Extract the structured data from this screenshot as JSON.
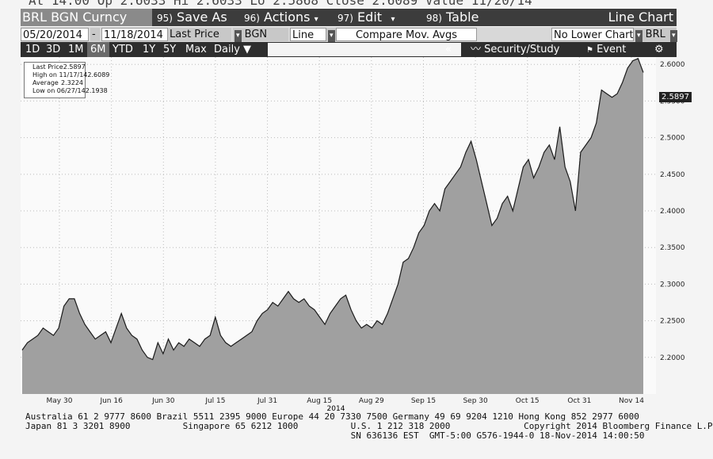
{
  "quote_line": "At 14:00   Op 2.6033    Hi 2.6033    Lo 2.5868   Close 2.6089    Value 11/20/14",
  "titlebar": {
    "ticker": "BRL BGN Curncy",
    "menus": [
      {
        "num": "95)",
        "label": "Save As"
      },
      {
        "num": "96)",
        "label": "Actions"
      },
      {
        "num": "97)",
        "label": "Edit"
      },
      {
        "num": "98)",
        "label": "Table"
      }
    ],
    "chart_type": "Line Chart"
  },
  "controls": {
    "start_date": "05/20/2014",
    "date_sep": "-",
    "end_date": "11/18/2014",
    "field": "Last Price",
    "source": "BGN",
    "style": "Line",
    "compare": "Compare Mov. Avgs",
    "lower_chart": "No Lower Chart",
    "currency": "BRL"
  },
  "rangebar": {
    "ranges": [
      "1D",
      "3D",
      "1M",
      "6M",
      "YTD",
      "1Y",
      "5Y",
      "Max"
    ],
    "active": "6M",
    "frequency": "Daily",
    "collapse": "«",
    "security": "Security/Study",
    "event": "Event",
    "settings_icon": "gear-icon"
  },
  "legend": [
    {
      "label": "Last Price",
      "value": "2.5897"
    },
    {
      "label": "High on 11/17/14",
      "value": "2.6089"
    },
    {
      "label": "Average",
      "value": "2.3224"
    },
    {
      "label": "Low on 06/27/14",
      "value": "2.1938"
    }
  ],
  "last_value_badge": "2.5897",
  "chart_data": {
    "type": "area",
    "title": "",
    "xlabel": "",
    "ylabel": "",
    "year_label": "2014",
    "ylim": [
      2.15,
      2.61
    ],
    "grid": true,
    "legend_position": "top-left",
    "x_ticks": [
      "May 30",
      "Jun 16",
      "Jun 30",
      "Jul 15",
      "Jul 31",
      "Aug 15",
      "Aug 29",
      "Sep 15",
      "Sep 30",
      "Oct 15",
      "Oct 31",
      "Nov 14"
    ],
    "y_ticks": [
      "2.2000",
      "2.2500",
      "2.3000",
      "2.3500",
      "2.4000",
      "2.4500",
      "2.5000",
      "2.5500",
      "2.6000"
    ],
    "series": [
      {
        "values": [
          2.21,
          2.22,
          2.225,
          2.23,
          2.24,
          2.235,
          2.23,
          2.24,
          2.27,
          2.28,
          2.28,
          2.26,
          2.245,
          2.235,
          2.225,
          2.23,
          2.235,
          2.22,
          2.24,
          2.26,
          2.24,
          2.23,
          2.225,
          2.21,
          2.2,
          2.197,
          2.22,
          2.205,
          2.225,
          2.21,
          2.22,
          2.215,
          2.225,
          2.22,
          2.215,
          2.225,
          2.23,
          2.255,
          2.23,
          2.22,
          2.215,
          2.22,
          2.225,
          2.23,
          2.235,
          2.25,
          2.26,
          2.265,
          2.275,
          2.27,
          2.28,
          2.29,
          2.28,
          2.275,
          2.28,
          2.27,
          2.265,
          2.255,
          2.245,
          2.26,
          2.27,
          2.28,
          2.285,
          2.265,
          2.25,
          2.24,
          2.245,
          2.24,
          2.25,
          2.245,
          2.26,
          2.28,
          2.3,
          2.33,
          2.335,
          2.35,
          2.37,
          2.38,
          2.4,
          2.41,
          2.4,
          2.43,
          2.44,
          2.45,
          2.46,
          2.48,
          2.495,
          2.47,
          2.44,
          2.41,
          2.38,
          2.39,
          2.41,
          2.42,
          2.4,
          2.43,
          2.46,
          2.47,
          2.445,
          2.46,
          2.48,
          2.49,
          2.47,
          2.515,
          2.46,
          2.44,
          2.4,
          2.48,
          2.49,
          2.5,
          2.52,
          2.565,
          2.56,
          2.555,
          2.56,
          2.575,
          2.595,
          2.605,
          2.608,
          2.589
        ]
      }
    ]
  },
  "footer": {
    "line1": "Australia 61 2 9777 8600 Brazil 5511 2395 9000 Europe 44 20 7330 7500 Germany 49 69 9204 1210 Hong Kong 852 2977 6000",
    "line2": "Japan 81 3 3201 8900          Singapore 65 6212 1000          U.S. 1 212 318 2000              Copyright 2014 Bloomberg Finance L.P.",
    "line3": "                                                              SN 636136 EST  GMT-5:00 G576-1944-0 18-Nov-2014 14:00:50"
  },
  "colors": {
    "area_fill": "#a0a0a0",
    "area_line": "#1a1a1a",
    "panel_bg": "#f4f4f4"
  }
}
